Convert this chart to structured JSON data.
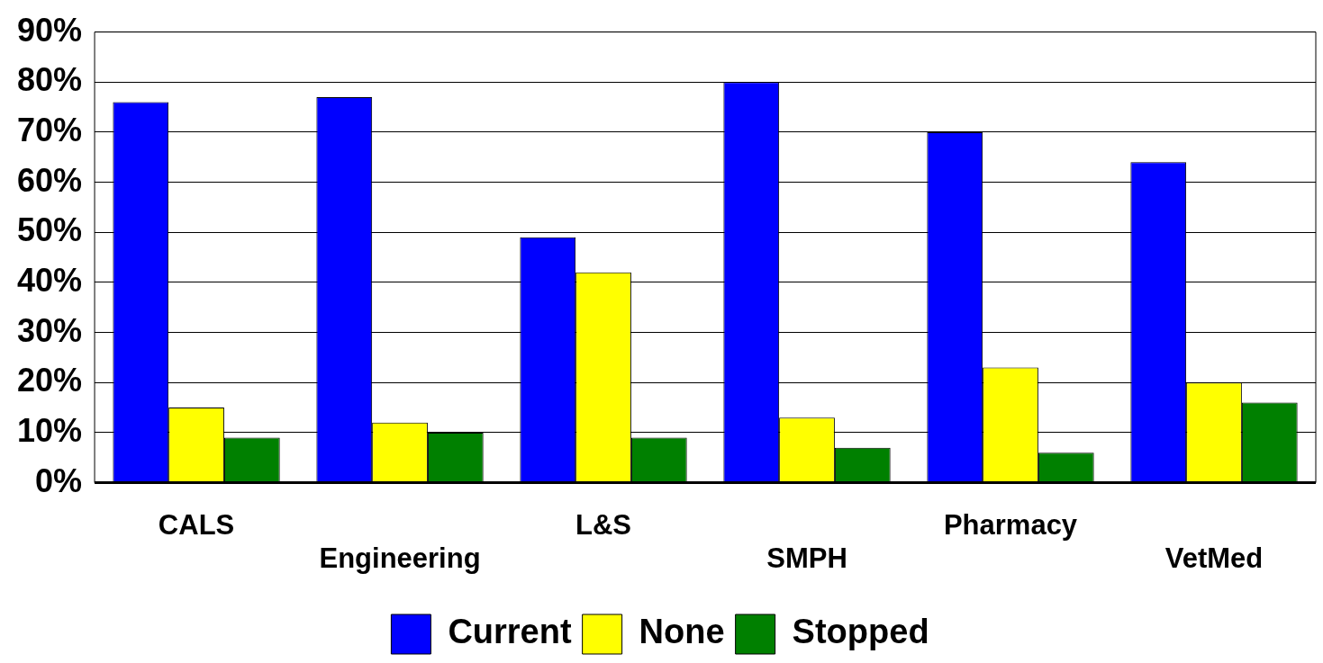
{
  "chart_data": {
    "type": "bar",
    "categories": [
      "CALS",
      "Engineering",
      "L&S",
      "SMPH",
      "Pharmacy",
      "VetMed"
    ],
    "series": [
      {
        "name": "Current",
        "color": "#0000ff",
        "values": [
          76,
          77,
          49,
          80,
          70,
          64
        ]
      },
      {
        "name": "None",
        "color": "#ffff00",
        "values": [
          15,
          12,
          42,
          13,
          23,
          20
        ]
      },
      {
        "name": "Stopped",
        "color": "#008000",
        "values": [
          9,
          10,
          9,
          7,
          6,
          16
        ]
      }
    ],
    "ylim": [
      0,
      90
    ],
    "yticks": [
      {
        "value": 0,
        "label": "0%"
      },
      {
        "value": 10,
        "label": "10%"
      },
      {
        "value": 20,
        "label": "20%"
      },
      {
        "value": 30,
        "label": "30%"
      },
      {
        "value": 40,
        "label": "40%"
      },
      {
        "value": 50,
        "label": "50%"
      },
      {
        "value": 60,
        "label": "60%"
      },
      {
        "value": 70,
        "label": "70%"
      },
      {
        "value": 80,
        "label": "80%"
      },
      {
        "value": 90,
        "label": "90%"
      }
    ],
    "grid": "y",
    "legend": "bottom"
  }
}
